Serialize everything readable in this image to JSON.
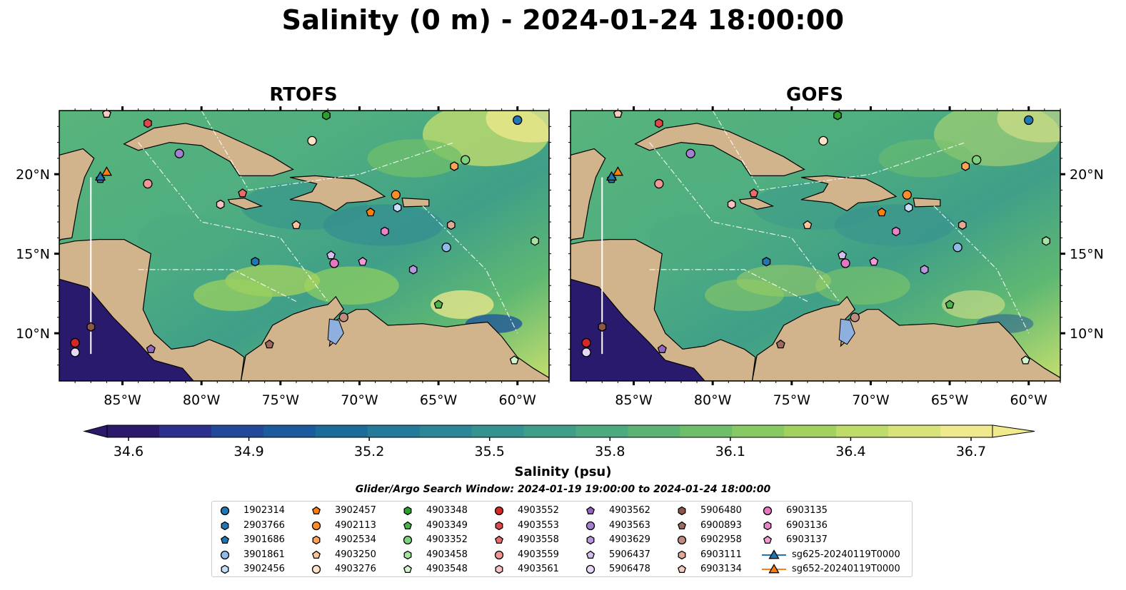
{
  "title": "Salinity (0 m) - 2024-01-24 18:00:00",
  "panels": [
    {
      "title": "RTOFS"
    },
    {
      "title": "GOFS"
    }
  ],
  "colorbar": {
    "label": "Salinity (psu)",
    "min": 34.6,
    "max": 36.7,
    "ticks": [
      "34.6",
      "34.9",
      "35.2",
      "35.5",
      "35.8",
      "36.1",
      "36.4",
      "36.7"
    ],
    "colors": [
      "#2b1a6b",
      "#2c2f8c",
      "#21489a",
      "#1b5a9c",
      "#1c6b9b",
      "#237a99",
      "#2b8796",
      "#349390",
      "#3f9e88",
      "#4da97f",
      "#5bb474",
      "#6fbf6a",
      "#87c962",
      "#a2d15f",
      "#bfdc6a",
      "#d8e47a",
      "#f0e98e"
    ]
  },
  "search_window": "Glider/Argo Search Window: 2024-01-19 19:00:00 to 2024-01-24 18:00:00",
  "chart_data": {
    "type": "map",
    "x_axis": {
      "range": [
        -89,
        -58
      ],
      "ticks": [
        "85°W",
        "80°W",
        "75°W",
        "70°W",
        "65°W",
        "60°W"
      ]
    },
    "y_axis": {
      "range": [
        7,
        24
      ],
      "ticks": [
        "10°N",
        "15°N",
        "20°N"
      ]
    },
    "field": "Salinity (0 m)",
    "floats": [
      {
        "id": "1902314",
        "lon": -60.0,
        "lat": 23.4,
        "marker": "circle",
        "color": "#1f77b4"
      },
      {
        "id": "2903766",
        "lon": -76.6,
        "lat": 14.5,
        "marker": "hexagon",
        "color": "#1f77b4"
      },
      {
        "id": "3901686",
        "lon": -86.4,
        "lat": 19.7,
        "marker": "pentagon",
        "color": "#1f77b4"
      },
      {
        "id": "3901861",
        "lon": -64.5,
        "lat": 15.4,
        "marker": "circle",
        "color": "#8fbbe6"
      },
      {
        "id": "3902456",
        "lon": -67.6,
        "lat": 17.9,
        "marker": "hexagon",
        "color": "#c6def7"
      },
      {
        "id": "3902457",
        "lon": -69.3,
        "lat": 17.6,
        "marker": "pentagon",
        "color": "#ff7f0e"
      },
      {
        "id": "4902113",
        "lon": -67.7,
        "lat": 18.7,
        "marker": "circle",
        "color": "#ff8c2a"
      },
      {
        "id": "4902534",
        "lon": -64.0,
        "lat": 20.5,
        "marker": "hexagon",
        "color": "#ffa35b"
      },
      {
        "id": "4903250",
        "lon": -74.0,
        "lat": 16.8,
        "marker": "pentagon",
        "color": "#ffc499"
      },
      {
        "id": "4903276",
        "lon": -73.0,
        "lat": 22.1,
        "marker": "circle",
        "color": "#ffe3c7"
      },
      {
        "id": "4903348",
        "lon": -72.1,
        "lat": 23.7,
        "marker": "hexagon",
        "color": "#2ca02c"
      },
      {
        "id": "4903349",
        "lon": -65.0,
        "lat": 11.8,
        "marker": "pentagon",
        "color": "#4ab54a"
      },
      {
        "id": "4903352",
        "lon": -63.3,
        "lat": 20.9,
        "marker": "circle",
        "color": "#7fd17f"
      },
      {
        "id": "4903458",
        "lon": -58.9,
        "lat": 15.8,
        "marker": "hexagon",
        "color": "#a6e3a0"
      },
      {
        "id": "4903548",
        "lon": -60.2,
        "lat": 8.3,
        "marker": "pentagon",
        "color": "#d2f5cd"
      },
      {
        "id": "4903552",
        "lon": -88.0,
        "lat": 9.4,
        "marker": "circle",
        "color": "#d62728"
      },
      {
        "id": "4903553",
        "lon": -83.4,
        "lat": 23.2,
        "marker": "hexagon",
        "color": "#e0474a"
      },
      {
        "id": "4903558",
        "lon": -77.4,
        "lat": 18.8,
        "marker": "pentagon",
        "color": "#ea6b6b"
      },
      {
        "id": "4903559",
        "lon": -83.4,
        "lat": 19.4,
        "marker": "circle",
        "color": "#f29595"
      },
      {
        "id": "4903561",
        "lon": -78.8,
        "lat": 18.1,
        "marker": "hexagon",
        "color": "#f8c2c2"
      },
      {
        "id": "4903562",
        "lon": -83.2,
        "lat": 9.0,
        "marker": "pentagon",
        "color": "#9467bd"
      },
      {
        "id": "4903563",
        "lon": -81.4,
        "lat": 21.3,
        "marker": "circle",
        "color": "#a57fd0"
      },
      {
        "id": "4903629",
        "lon": -66.6,
        "lat": 14.0,
        "marker": "hexagon",
        "color": "#b897dc"
      },
      {
        "id": "5906437",
        "lon": -71.8,
        "lat": 14.9,
        "marker": "pentagon",
        "color": "#d6bff0"
      },
      {
        "id": "5906478",
        "lon": -88.0,
        "lat": 8.8,
        "marker": "circle",
        "color": "#e8d8f7"
      },
      {
        "id": "5906480",
        "lon": -87.0,
        "lat": 10.4,
        "marker": "hexagon",
        "color": "#8c564b"
      },
      {
        "id": "6900893",
        "lon": -75.7,
        "lat": 9.3,
        "marker": "pentagon",
        "color": "#9c6a5f"
      },
      {
        "id": "6902958",
        "lon": -71.0,
        "lat": 11.0,
        "marker": "circle",
        "color": "#c08c80"
      },
      {
        "id": "6903111",
        "lon": -64.2,
        "lat": 16.8,
        "marker": "hexagon",
        "color": "#e0a997"
      },
      {
        "id": "6903134",
        "lon": -86.0,
        "lat": 23.8,
        "marker": "pentagon",
        "color": "#f5ccc0"
      },
      {
        "id": "6903135",
        "lon": -71.6,
        "lat": 14.4,
        "marker": "circle",
        "color": "#e377c2"
      },
      {
        "id": "6903136",
        "lon": -68.4,
        "lat": 16.4,
        "marker": "hexagon",
        "color": "#e983c8"
      },
      {
        "id": "6903137",
        "lon": -69.8,
        "lat": 14.5,
        "marker": "pentagon",
        "color": "#f29ad6"
      }
    ],
    "gliders": [
      {
        "id": "sg625-20240119T0000",
        "lon": -86.4,
        "lat": 19.8,
        "marker": "triangle",
        "color": "#1f77b4"
      },
      {
        "id": "sg652-20240119T0000",
        "lon": -86.0,
        "lat": 20.1,
        "marker": "triangle",
        "color": "#ff7f0e"
      }
    ],
    "transect": {
      "lon": -87.0,
      "lat_range": [
        8.7,
        19.8
      ],
      "color": "#ffffff"
    }
  },
  "legend": {
    "items": [
      {
        "label": "1902314",
        "marker": "circle",
        "color": "#1f77b4"
      },
      {
        "label": "2903766",
        "marker": "hexagon",
        "color": "#1f77b4"
      },
      {
        "label": "3901686",
        "marker": "pentagon",
        "color": "#1f77b4"
      },
      {
        "label": "3901861",
        "marker": "circle",
        "color": "#8fbbe6"
      },
      {
        "label": "3902456",
        "marker": "hexagon",
        "color": "#c6def7"
      },
      {
        "label": "3902457",
        "marker": "pentagon",
        "color": "#ff7f0e"
      },
      {
        "label": "4902113",
        "marker": "circle",
        "color": "#ff8c2a"
      },
      {
        "label": "4902534",
        "marker": "hexagon",
        "color": "#ffa35b"
      },
      {
        "label": "4903250",
        "marker": "pentagon",
        "color": "#ffc499"
      },
      {
        "label": "4903276",
        "marker": "circle",
        "color": "#ffe3c7"
      },
      {
        "label": "4903348",
        "marker": "hexagon",
        "color": "#2ca02c"
      },
      {
        "label": "4903349",
        "marker": "pentagon",
        "color": "#4ab54a"
      },
      {
        "label": "4903352",
        "marker": "circle",
        "color": "#7fd17f"
      },
      {
        "label": "4903458",
        "marker": "hexagon",
        "color": "#a6e3a0"
      },
      {
        "label": "4903548",
        "marker": "pentagon",
        "color": "#d2f5cd"
      },
      {
        "label": "4903552",
        "marker": "circle",
        "color": "#d62728"
      },
      {
        "label": "4903553",
        "marker": "hexagon",
        "color": "#e0474a"
      },
      {
        "label": "4903558",
        "marker": "pentagon",
        "color": "#ea6b6b"
      },
      {
        "label": "4903559",
        "marker": "circle",
        "color": "#f29595"
      },
      {
        "label": "4903561",
        "marker": "hexagon",
        "color": "#f8c2c2"
      },
      {
        "label": "4903562",
        "marker": "pentagon",
        "color": "#9467bd"
      },
      {
        "label": "4903563",
        "marker": "circle",
        "color": "#a57fd0"
      },
      {
        "label": "4903629",
        "marker": "hexagon",
        "color": "#b897dc"
      },
      {
        "label": "5906437",
        "marker": "pentagon",
        "color": "#d6bff0"
      },
      {
        "label": "5906478",
        "marker": "circle",
        "color": "#e8d8f7"
      },
      {
        "label": "5906480",
        "marker": "hexagon",
        "color": "#8c564b"
      },
      {
        "label": "6900893",
        "marker": "pentagon",
        "color": "#9c6a5f"
      },
      {
        "label": "6902958",
        "marker": "circle",
        "color": "#c08c80"
      },
      {
        "label": "6903111",
        "marker": "hexagon",
        "color": "#e0a997"
      },
      {
        "label": "6903134",
        "marker": "pentagon",
        "color": "#f5ccc0"
      },
      {
        "label": "6903135",
        "marker": "circle",
        "color": "#e377c2"
      },
      {
        "label": "6903136",
        "marker": "hexagon",
        "color": "#e983c8"
      },
      {
        "label": "6903137",
        "marker": "pentagon",
        "color": "#f29ad6"
      },
      {
        "label": "sg625-20240119T0000",
        "marker": "triangle-line",
        "color": "#1f77b4"
      },
      {
        "label": "sg652-20240119T0000",
        "marker": "triangle-line",
        "color": "#ff7f0e"
      }
    ]
  }
}
